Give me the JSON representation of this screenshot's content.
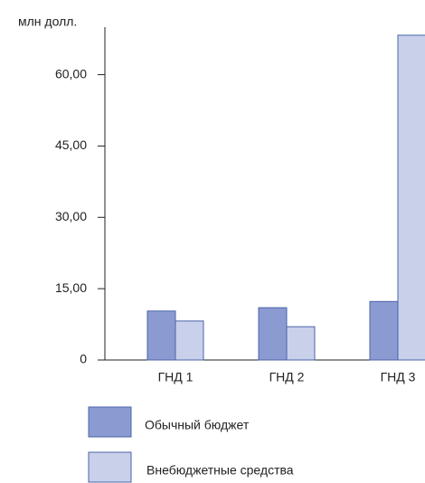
{
  "chart_data": {
    "type": "bar",
    "y_label": "млн долл.",
    "categories": [
      "ГНД 1",
      "ГНД 2",
      "ГНД 3"
    ],
    "series": [
      {
        "name": "Обычный бюджет",
        "color": "#8b9bd1",
        "values": [
          10.3,
          11.0,
          12.3
        ]
      },
      {
        "name": "Внебюджетные средства",
        "color": "#c9d0ea",
        "values": [
          8.2,
          7.0,
          68.3
        ]
      }
    ],
    "ylim": [
      0,
      70
    ],
    "yticks": [
      0,
      {
        "value": 15,
        "label": "15,00"
      },
      {
        "value": 30,
        "label": "30,00"
      },
      {
        "value": 45,
        "label": "45,00"
      },
      {
        "value": 60,
        "label": "60,00"
      }
    ],
    "edge_color": "#4a64aa"
  }
}
